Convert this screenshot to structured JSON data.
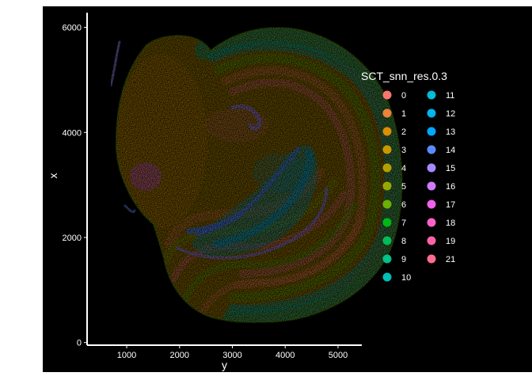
{
  "chart_data": {
    "type": "scatter",
    "xlabel": "y",
    "ylabel": "x",
    "xlim": [
      250,
      5450
    ],
    "ylim": [
      -50,
      6400
    ],
    "x_ticks": [
      1000,
      2000,
      3000,
      4000,
      5000
    ],
    "y_ticks": [
      0,
      2000,
      4000,
      6000
    ],
    "grid": false,
    "background": "#000000",
    "legend": {
      "title": "SCT_snn_res.0.3",
      "placement": "right",
      "entries": [
        {
          "label": "0",
          "color": "#F8766D"
        },
        {
          "label": "1",
          "color": "#EC823C"
        },
        {
          "label": "2",
          "color": "#DC8E00"
        },
        {
          "label": "3",
          "color": "#C99800"
        },
        {
          "label": "4",
          "color": "#B3A000"
        },
        {
          "label": "5",
          "color": "#96A900"
        },
        {
          "label": "6",
          "color": "#6BB100"
        },
        {
          "label": "7",
          "color": "#00B813"
        },
        {
          "label": "8",
          "color": "#00BC56"
        },
        {
          "label": "9",
          "color": "#00C08B"
        },
        {
          "label": "10",
          "color": "#00BFB4"
        },
        {
          "label": "11",
          "color": "#00BCD6"
        },
        {
          "label": "12",
          "color": "#00B5EE"
        },
        {
          "label": "13",
          "color": "#00A7FF"
        },
        {
          "label": "14",
          "color": "#5B8CFF"
        },
        {
          "label": "15",
          "color": "#A58AFF"
        },
        {
          "label": "16",
          "color": "#D27AFF"
        },
        {
          "label": "17",
          "color": "#F062EB"
        },
        {
          "label": "18",
          "color": "#FF61C9"
        },
        {
          "label": "19",
          "color": "#FF62A8"
        },
        {
          "label": "21",
          "color": "#FF6C91"
        }
      ]
    }
  }
}
